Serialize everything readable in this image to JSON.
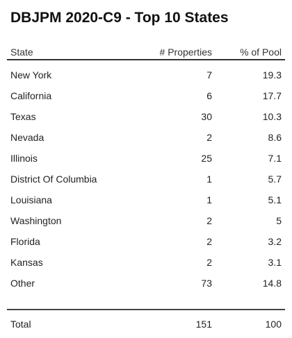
{
  "chart_data": {
    "type": "table",
    "title": "DBJPM 2020-C9 - Top 10 States",
    "columns": [
      "State",
      "# Properties",
      "% of Pool"
    ],
    "rows": [
      {
        "state": "New York",
        "properties": 7,
        "pct": 19.3
      },
      {
        "state": "California",
        "properties": 6,
        "pct": 17.7
      },
      {
        "state": "Texas",
        "properties": 30,
        "pct": 10.3
      },
      {
        "state": "Nevada",
        "properties": 2,
        "pct": 8.6
      },
      {
        "state": "Illinois",
        "properties": 25,
        "pct": 7.1
      },
      {
        "state": "District Of Columbia",
        "properties": 1,
        "pct": 5.7
      },
      {
        "state": "Louisiana",
        "properties": 1,
        "pct": 5.1
      },
      {
        "state": "Washington",
        "properties": 2,
        "pct": 5
      },
      {
        "state": "Florida",
        "properties": 2,
        "pct": 3.2
      },
      {
        "state": "Kansas",
        "properties": 2,
        "pct": 3.1
      },
      {
        "state": "Other",
        "properties": 73,
        "pct": 14.8
      }
    ],
    "total": {
      "label": "Total",
      "properties": 151,
      "pct": 100
    }
  }
}
